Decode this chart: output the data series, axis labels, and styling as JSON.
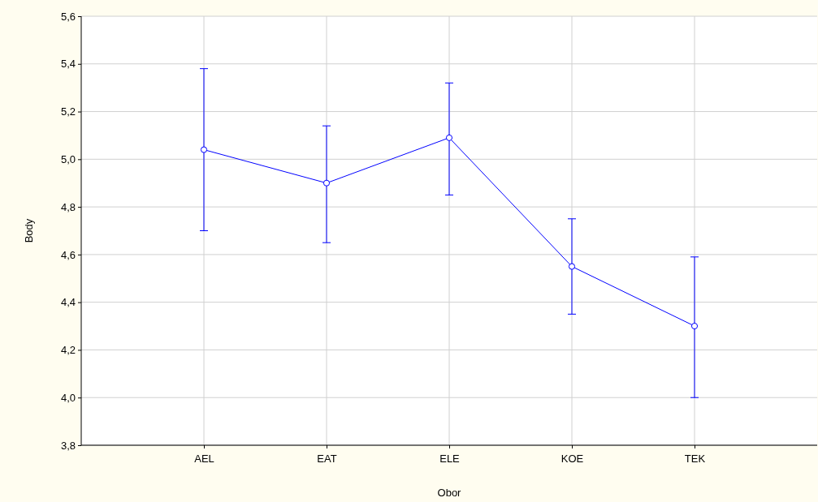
{
  "chart_data": {
    "type": "line",
    "xlabel": "Obor",
    "ylabel": "Body",
    "categories": [
      "AEL",
      "EAT",
      "ELE",
      "KOE",
      "TEK"
    ],
    "series": [
      {
        "color": "#0000ff",
        "values": [
          5.04,
          4.9,
          5.09,
          4.55,
          4.3
        ],
        "errors": [
          [
            4.7,
            5.38
          ],
          [
            4.65,
            5.14
          ],
          [
            4.85,
            5.32
          ],
          [
            4.35,
            4.75
          ],
          [
            4.0,
            4.59
          ]
        ]
      }
    ],
    "ylim": [
      3.8,
      5.6
    ],
    "yticks": [
      {
        "value": 3.8,
        "label": "3,8"
      },
      {
        "value": 4.0,
        "label": "4,0"
      },
      {
        "value": 4.2,
        "label": "4,2"
      },
      {
        "value": 4.4,
        "label": "4,4"
      },
      {
        "value": 4.6,
        "label": "4,6"
      },
      {
        "value": 4.8,
        "label": "4,8"
      },
      {
        "value": 5.0,
        "label": "5,0"
      },
      {
        "value": 5.2,
        "label": "5,2"
      },
      {
        "value": 5.4,
        "label": "5,4"
      },
      {
        "value": 5.6,
        "label": "5,6"
      }
    ],
    "grid": true,
    "marker": "circle",
    "line_style": "solid"
  }
}
